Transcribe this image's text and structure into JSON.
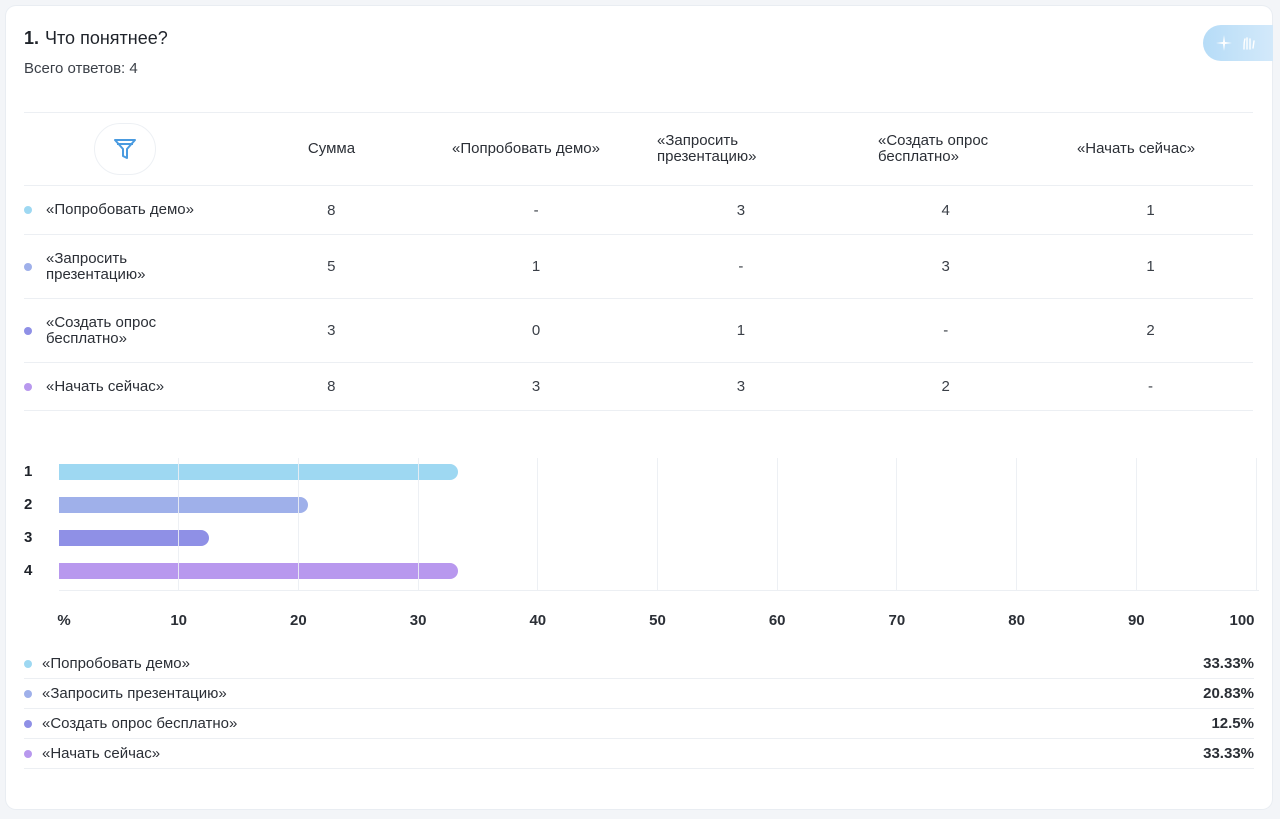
{
  "question": {
    "number": "1.",
    "title": "Что понятнее?",
    "total": "Всего ответов: 4"
  },
  "colors": {
    "option1": "#9ed8f2",
    "option2": "#9fb0ea",
    "option3": "#8f90e6",
    "option4": "#b898ee"
  },
  "icons": {
    "filter": "filter-icon",
    "ai": "sparkle-icon"
  },
  "table": {
    "headers": [
      "Сумма",
      "«Попробовать демо»",
      "«Запросить презентацию»",
      "«Создать опрос бесплатно»",
      "«Начать сейчас»"
    ],
    "rows": [
      {
        "label": "«Попробовать демо»",
        "values": [
          "8",
          "-",
          "3",
          "4",
          "1"
        ]
      },
      {
        "label": "«Запросить презентацию»",
        "values": [
          "5",
          "1",
          "-",
          "3",
          "1"
        ]
      },
      {
        "label": "«Создать опрос бесплатно»",
        "values": [
          "3",
          "0",
          "1",
          "-",
          "2"
        ]
      },
      {
        "label": "«Начать сейчас»",
        "values": [
          "8",
          "3",
          "3",
          "2",
          "-"
        ]
      }
    ]
  },
  "chart_data": {
    "type": "bar",
    "orientation": "horizontal",
    "categories": [
      "1",
      "2",
      "3",
      "4"
    ],
    "values": [
      33.33,
      20.83,
      12.5,
      33.33
    ],
    "xlim": [
      0,
      100
    ],
    "x_ticks": [
      "%",
      "10",
      "20",
      "30",
      "40",
      "50",
      "60",
      "70",
      "80",
      "90",
      "100"
    ],
    "grid": true
  },
  "legend": [
    {
      "label": "«Попробовать демо»",
      "percent": "33.33%"
    },
    {
      "label": "«Запросить презентацию»",
      "percent": "20.83%"
    },
    {
      "label": "«Создать опрос бесплатно»",
      "percent": "12.5%"
    },
    {
      "label": "«Начать сейчас»",
      "percent": "33.33%"
    }
  ]
}
